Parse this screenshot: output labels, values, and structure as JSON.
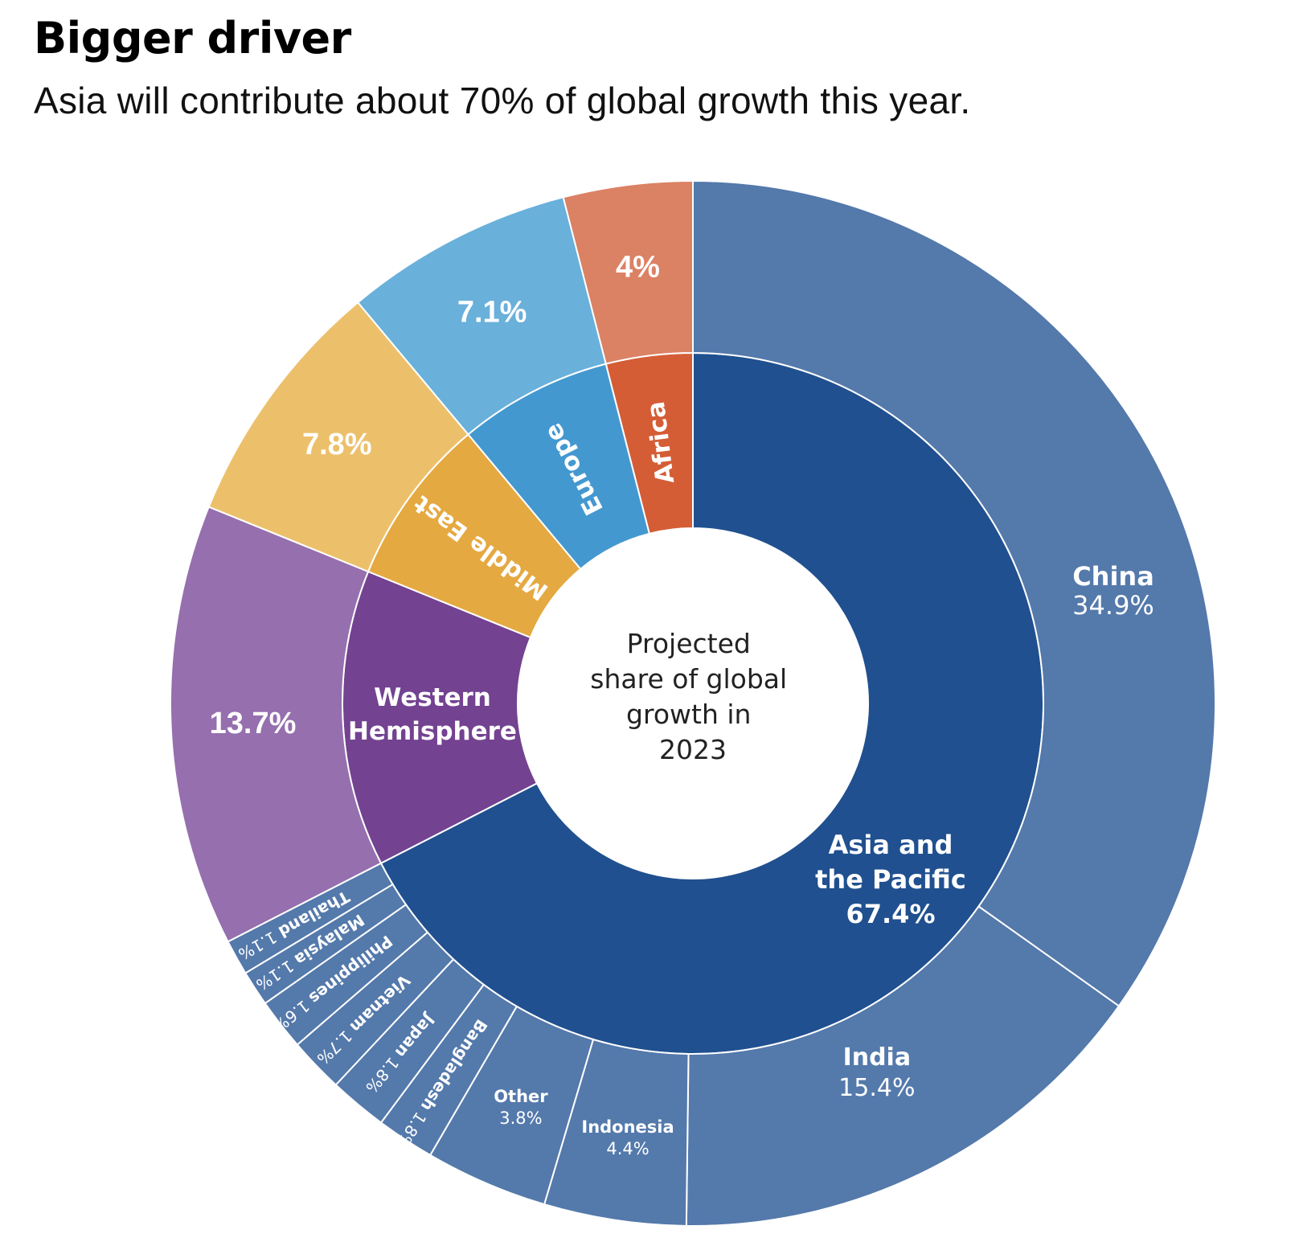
{
  "header": {
    "title": "Bigger driver",
    "subtitle": "Asia will contribute about 70% of global growth this year."
  },
  "chart_data": {
    "type": "sunburst",
    "title": "Bigger driver",
    "subtitle": "Asia will contribute about 70% of global growth this year.",
    "center_label": [
      "Projected",
      "share of global",
      "growth in",
      "2023"
    ],
    "unit": "%",
    "regions": [
      {
        "name": "Asia and the Pacific",
        "label_lines": [
          "Asia and",
          "the Pacific"
        ],
        "value": 67.4,
        "value_label": "67.4%",
        "color": "#20508f",
        "outer_color": "#5479ab",
        "children": [
          {
            "name": "China",
            "value": 34.9,
            "value_label": "34.9%"
          },
          {
            "name": "India",
            "value": 15.4,
            "value_label": "15.4%"
          },
          {
            "name": "Indonesia",
            "value": 4.4,
            "value_label": "4.4%"
          },
          {
            "name": "Other",
            "value": 3.8,
            "value_label": "3.8%"
          },
          {
            "name": "Bangladesh",
            "value": 1.8,
            "value_label": "1.8%"
          },
          {
            "name": "Japan",
            "value": 1.8,
            "value_label": "1.8%"
          },
          {
            "name": "Vietnam",
            "value": 1.7,
            "value_label": "1.7%"
          },
          {
            "name": "Philippines",
            "value": 1.6,
            "value_label": "1.6%"
          },
          {
            "name": "Malaysia",
            "value": 1.1,
            "value_label": "1.1%"
          },
          {
            "name": "Thailand",
            "value": 1.1,
            "value_label": "1.1%"
          }
        ]
      },
      {
        "name": "Western Hemisphere",
        "label_lines": [
          "Western",
          "Hemisphere"
        ],
        "value": 13.7,
        "value_label": "13.7%",
        "color": "#734291",
        "outer_color": "#966fae"
      },
      {
        "name": "Middle East",
        "label_lines": [
          "Middle East"
        ],
        "value": 7.8,
        "value_label": "7.8%",
        "color": "#e5a941",
        "outer_color": "#ecc06b"
      },
      {
        "name": "Europe",
        "label_lines": [
          "Europe"
        ],
        "value": 7.1,
        "value_label": "7.1%",
        "color": "#4498d0",
        "outer_color": "#69b0db"
      },
      {
        "name": "Africa",
        "label_lines": [
          "Africa"
        ],
        "value": 4,
        "value_label": "4%",
        "color": "#d45d35",
        "outer_color": "#db8164"
      }
    ]
  }
}
